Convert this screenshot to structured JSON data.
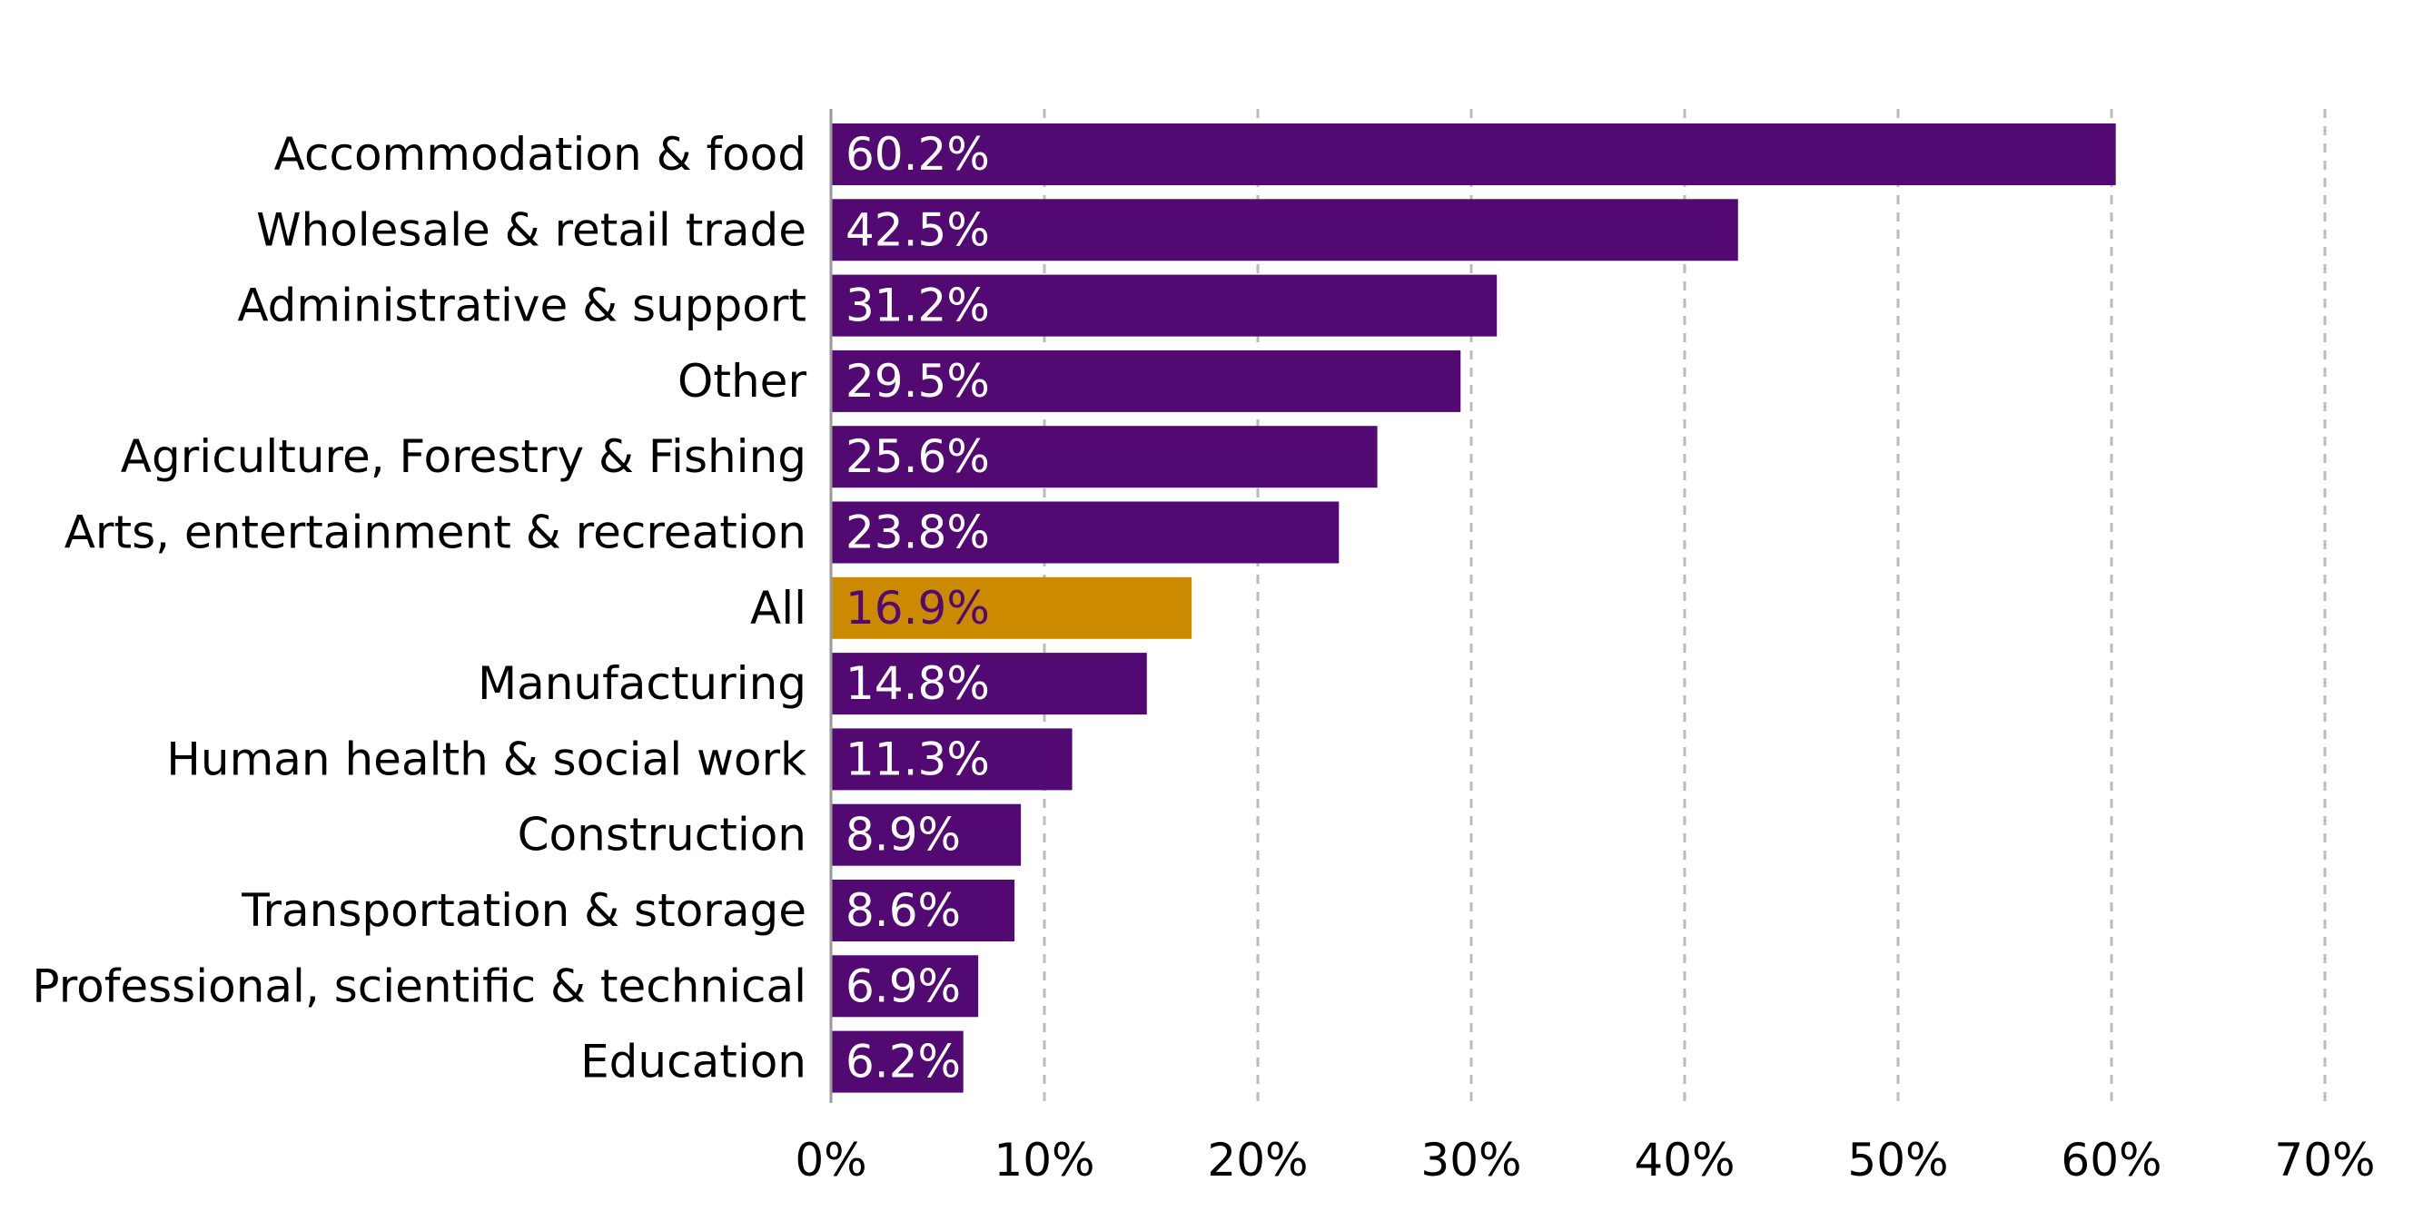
{
  "chart_data": {
    "type": "bar",
    "orientation": "horizontal",
    "categories": [
      "Accommodation & food",
      "Wholesale & retail trade",
      "Administrative & support",
      "Other",
      "Agriculture, Forestry & Fishing",
      "Arts, entertainment & recreation",
      "All",
      "Manufacturing",
      "Human health & social work",
      "Construction",
      "Transportation & storage",
      "Professional, scientific & technical",
      "Education"
    ],
    "values": [
      60.2,
      42.5,
      31.2,
      29.5,
      25.6,
      23.8,
      16.9,
      14.8,
      11.3,
      8.9,
      8.6,
      6.9,
      6.2
    ],
    "value_labels": [
      "60.2%",
      "42.5%",
      "31.2%",
      "29.5%",
      "25.6%",
      "23.8%",
      "16.9%",
      "14.8%",
      "11.3%",
      "8.9%",
      "8.6%",
      "6.9%",
      "6.2%"
    ],
    "highlight_category": "All",
    "title": "",
    "xlabel": "",
    "ylabel": "",
    "xlim": [
      0,
      70
    ],
    "x_ticks": [
      0,
      10,
      20,
      30,
      40,
      50,
      60,
      70
    ],
    "x_tick_labels": [
      "0%",
      "10%",
      "20%",
      "30%",
      "40%",
      "50%",
      "60%",
      "70%"
    ],
    "grid": "vertical dashed",
    "legend": "none",
    "colors": {
      "bar": "#520a72",
      "highlight_bar": "#cc8a00",
      "label_on_bar": "#ffffff",
      "label_on_highlight": "#520a72",
      "grid": "#bbbbbb",
      "axis": "#999999"
    }
  }
}
